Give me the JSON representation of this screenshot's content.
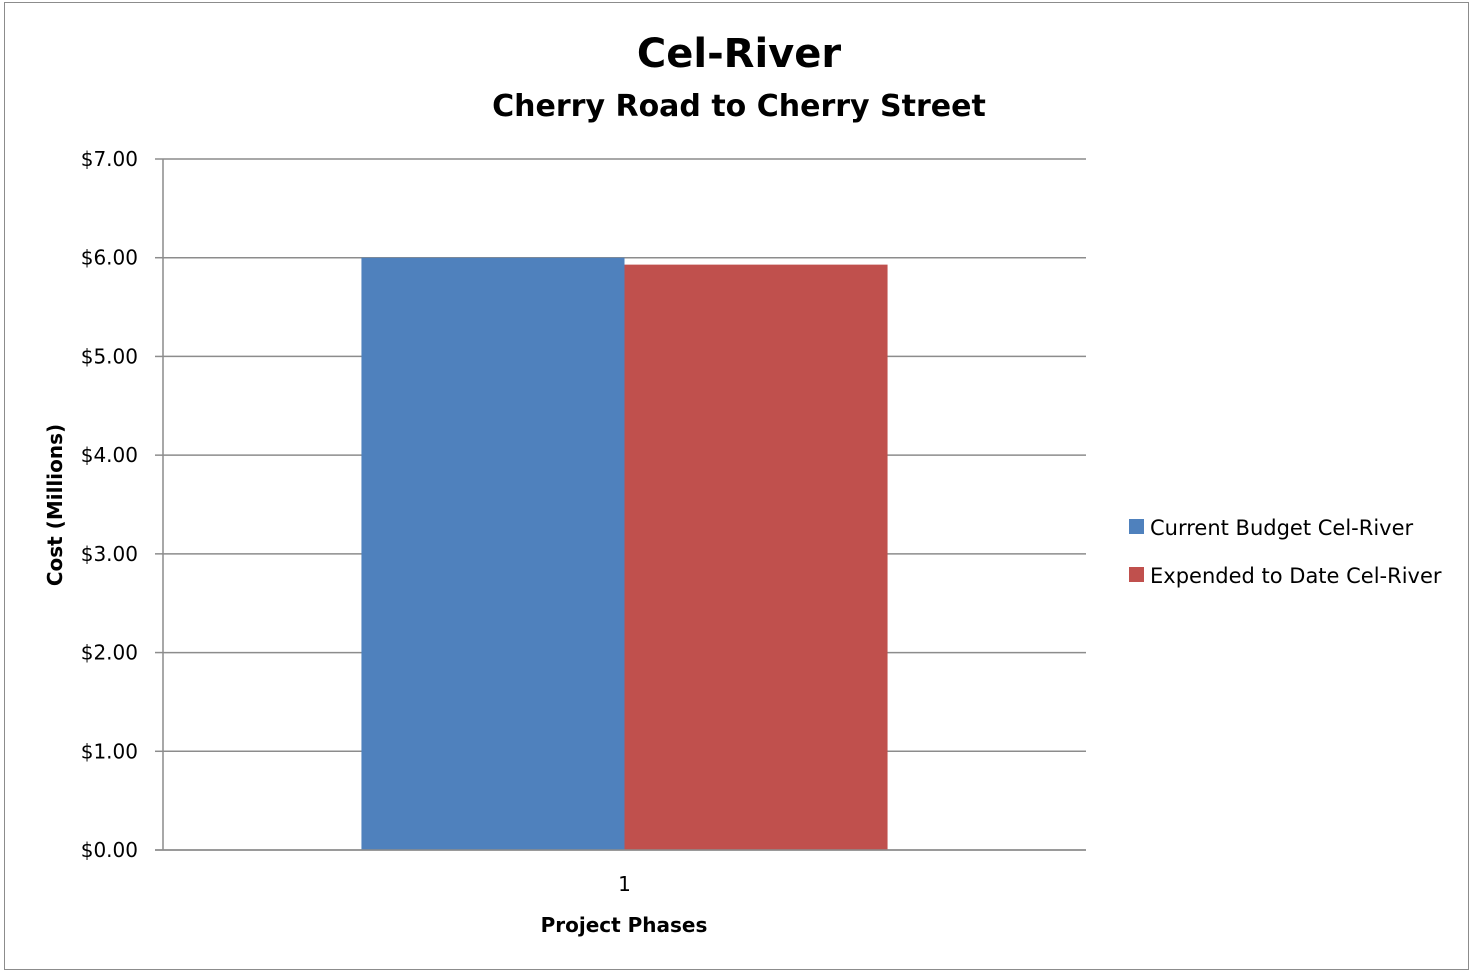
{
  "chart_data": {
    "type": "bar",
    "title": "Cel-River",
    "subtitle": "Cherry Road to Cherry Street",
    "xlabel": "Project Phases",
    "ylabel": "Cost (Millions)",
    "categories": [
      "1"
    ],
    "series": [
      {
        "name": "Current Budget Cel-River",
        "values": [
          6.0
        ],
        "color": "#4F81BD"
      },
      {
        "name": "Expended to Date Cel-River",
        "values": [
          5.93
        ],
        "color": "#C0504D"
      }
    ],
    "ylim": [
      0,
      7
    ],
    "yticks": [
      0,
      1,
      2,
      3,
      4,
      5,
      6,
      7
    ],
    "ytick_labels": [
      "$0.00",
      "$1.00",
      "$2.00",
      "$3.00",
      "$4.00",
      "$5.00",
      "$6.00",
      "$7.00"
    ],
    "grid": true,
    "legend_position": "right"
  }
}
